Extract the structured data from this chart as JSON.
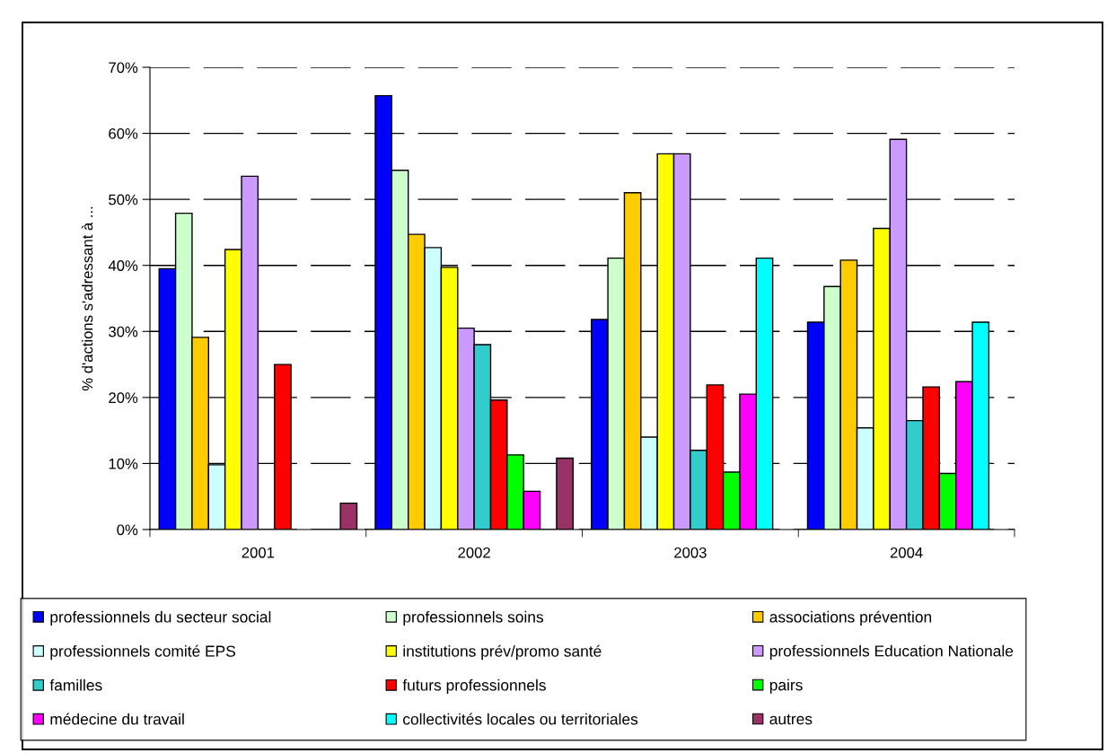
{
  "chart_data": {
    "type": "bar",
    "ylabel": "% d'actions s'adressant à ...",
    "categories": [
      "2001",
      "2002",
      "2003",
      "2004"
    ],
    "ylim": [
      0,
      0.7
    ],
    "yticks": [
      {
        "value": 0,
        "label": "0%"
      },
      {
        "value": 0.1,
        "label": "10%"
      },
      {
        "value": 0.2,
        "label": "20%"
      },
      {
        "value": 0.3,
        "label": "30%"
      },
      {
        "value": 0.4,
        "label": "40%"
      },
      {
        "value": 0.5,
        "label": "50%"
      },
      {
        "value": 0.6,
        "label": "60%"
      },
      {
        "value": 0.7,
        "label": "70%"
      }
    ],
    "grid": "y",
    "legend": "bottom",
    "series": [
      {
        "name": "professionnels du secteur social",
        "color": "#0000ff",
        "values": [
          0.395,
          0.657,
          0.318,
          0.314
        ]
      },
      {
        "name": "professionnels soins",
        "color": "#ccffcc",
        "values": [
          0.479,
          0.544,
          0.411,
          0.368
        ]
      },
      {
        "name": "associations prévention",
        "color": "#ffcc00",
        "values": [
          0.291,
          0.447,
          0.51,
          0.408
        ]
      },
      {
        "name": "professionnels comité EPS",
        "color": "#ccffff",
        "values": [
          0.098,
          0.427,
          0.14,
          0.154
        ]
      },
      {
        "name": "institutions prév/promo santé",
        "color": "#ffff00",
        "values": [
          0.424,
          0.397,
          0.569,
          0.456
        ]
      },
      {
        "name": "professionnels Education Nationale",
        "color": "#cc99ff",
        "values": [
          0.535,
          0.305,
          0.569,
          0.591
        ]
      },
      {
        "name": "familles",
        "color": "#33cccc",
        "values": [
          null,
          0.28,
          0.12,
          0.165
        ]
      },
      {
        "name": "futurs professionnels",
        "color": "#ff0000",
        "values": [
          0.25,
          0.196,
          0.219,
          0.216
        ]
      },
      {
        "name": "pairs",
        "color": "#00ff00",
        "values": [
          null,
          0.113,
          0.087,
          0.085
        ]
      },
      {
        "name": "médecine du travail",
        "color": "#ff00ff",
        "values": [
          null,
          0.058,
          0.205,
          0.224
        ]
      },
      {
        "name": "collectivités locales ou territoriales",
        "color": "#00ffff",
        "values": [
          null,
          null,
          0.411,
          0.314
        ]
      },
      {
        "name": "autres",
        "color": "#993366",
        "values": [
          0.04,
          0.108,
          null,
          null
        ]
      }
    ]
  }
}
